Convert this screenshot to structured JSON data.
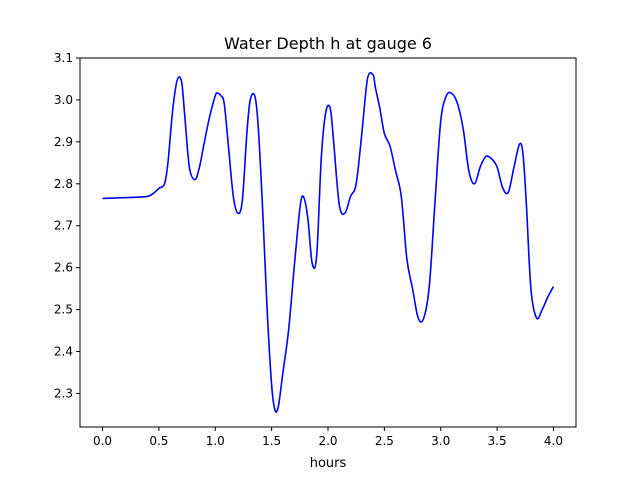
{
  "chart_data": {
    "type": "line",
    "title": "Water Depth h at gauge 6",
    "xlabel": "hours",
    "ylabel": "",
    "xlim": [
      -0.2,
      4.2
    ],
    "ylim": [
      2.22,
      3.1
    ],
    "xticks": [
      0.0,
      0.5,
      1.0,
      1.5,
      2.0,
      2.5,
      3.0,
      3.5,
      4.0
    ],
    "xtick_labels": [
      "0.0",
      "0.5",
      "1.0",
      "1.5",
      "2.0",
      "2.5",
      "3.0",
      "3.5",
      "4.0"
    ],
    "yticks": [
      2.3,
      2.4,
      2.5,
      2.6,
      2.7,
      2.8,
      2.9,
      3.0,
      3.1
    ],
    "ytick_labels": [
      "2.3",
      "2.4",
      "2.5",
      "2.6",
      "2.7",
      "2.8",
      "2.9",
      "3.0",
      "3.1"
    ],
    "grid": false,
    "legend": "none",
    "series": [
      {
        "color": "#0000ff",
        "x": [
          0.0,
          0.1,
          0.2,
          0.3,
          0.4,
          0.45,
          0.5,
          0.55,
          0.58,
          0.62,
          0.66,
          0.7,
          0.73,
          0.77,
          0.82,
          0.86,
          0.9,
          0.95,
          1.0,
          1.02,
          1.05,
          1.08,
          1.12,
          1.16,
          1.2,
          1.24,
          1.28,
          1.31,
          1.35,
          1.38,
          1.42,
          1.46,
          1.5,
          1.53,
          1.56,
          1.6,
          1.65,
          1.7,
          1.75,
          1.78,
          1.82,
          1.86,
          1.9,
          1.94,
          1.98,
          2.02,
          2.05,
          2.1,
          2.15,
          2.2,
          2.25,
          2.3,
          2.35,
          2.4,
          2.42,
          2.46,
          2.5,
          2.55,
          2.6,
          2.65,
          2.7,
          2.75,
          2.8,
          2.85,
          2.9,
          2.95,
          3.0,
          3.05,
          3.1,
          3.15,
          3.2,
          3.25,
          3.3,
          3.35,
          3.4,
          3.45,
          3.5,
          3.55,
          3.6,
          3.65,
          3.7,
          3.73,
          3.76,
          3.8,
          3.85,
          3.9,
          3.95,
          4.0
        ],
        "y": [
          2.765,
          2.766,
          2.767,
          2.768,
          2.77,
          2.777,
          2.789,
          2.8,
          2.85,
          2.97,
          3.045,
          3.045,
          2.96,
          2.84,
          2.81,
          2.84,
          2.895,
          2.96,
          3.01,
          3.016,
          3.01,
          2.99,
          2.88,
          2.77,
          2.73,
          2.76,
          2.92,
          3.0,
          3.01,
          2.94,
          2.74,
          2.5,
          2.32,
          2.26,
          2.27,
          2.35,
          2.45,
          2.6,
          2.74,
          2.77,
          2.72,
          2.61,
          2.63,
          2.86,
          2.97,
          2.98,
          2.9,
          2.75,
          2.73,
          2.77,
          2.8,
          2.92,
          3.05,
          3.06,
          3.03,
          2.98,
          2.92,
          2.89,
          2.83,
          2.77,
          2.62,
          2.55,
          2.48,
          2.48,
          2.56,
          2.76,
          2.95,
          3.01,
          3.015,
          2.99,
          2.93,
          2.83,
          2.8,
          2.84,
          2.865,
          2.86,
          2.84,
          2.79,
          2.78,
          2.84,
          2.895,
          2.87,
          2.75,
          2.55,
          2.48,
          2.5,
          2.53,
          2.555
        ]
      }
    ]
  }
}
